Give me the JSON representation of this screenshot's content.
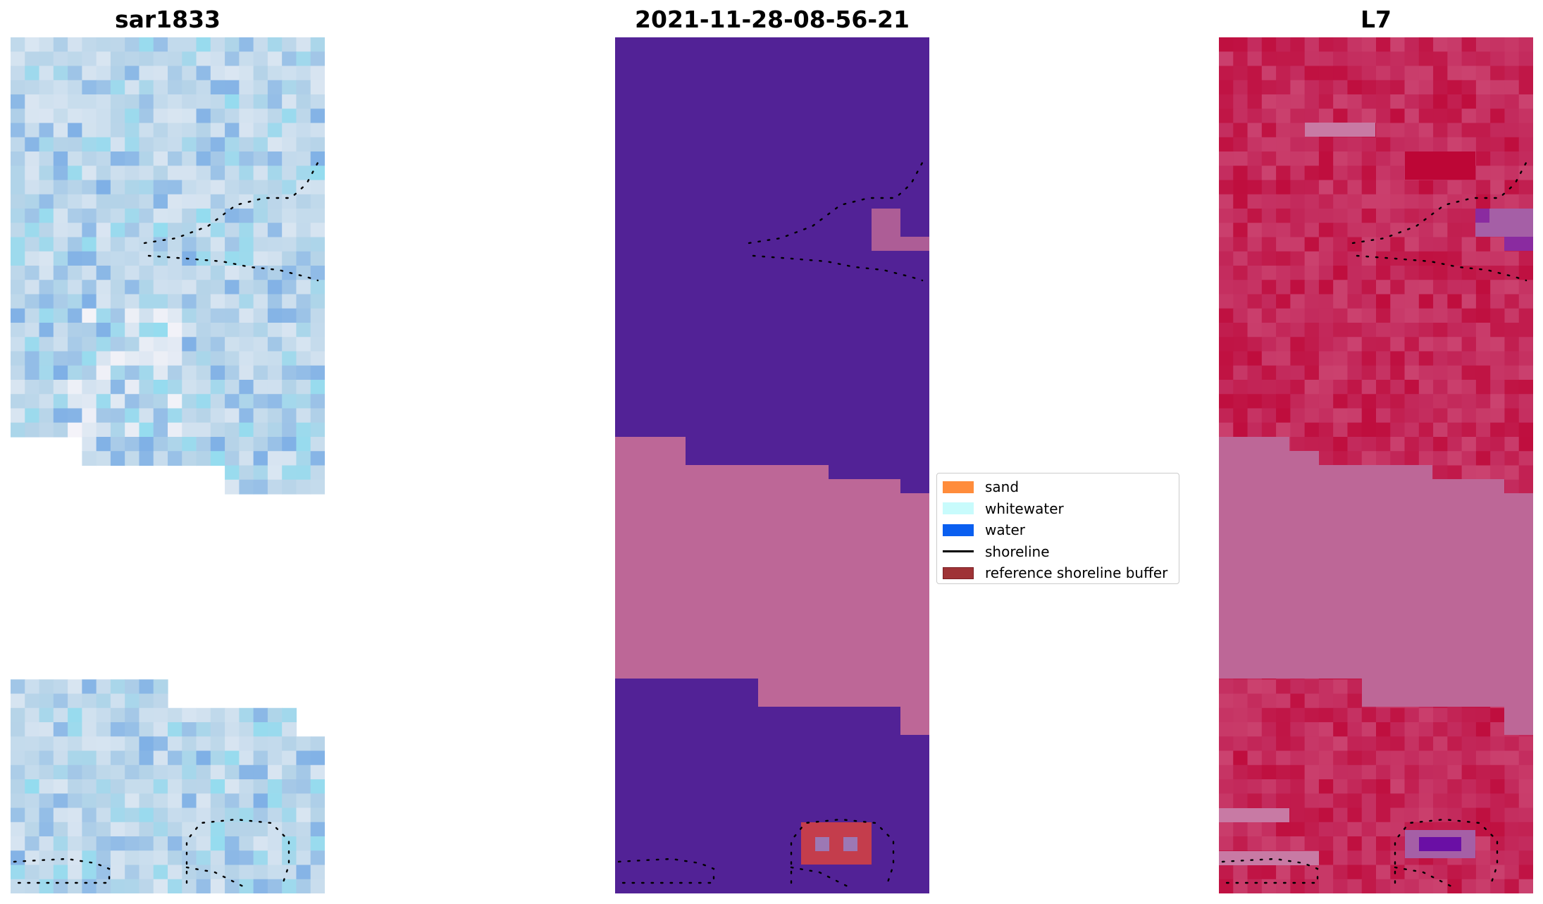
{
  "chart_data": [
    {
      "type": "heatmap",
      "title": "sar1833",
      "description_note": "",
      "ncols": 22,
      "nrows": 60,
      "nodata_mask_rows": "",
      "colors": {
        "low": "#7fb0e6",
        "mid": "#b5d3e8",
        "high": "#f2f2f8",
        "accent": "#94dcef"
      }
    },
    {
      "type": "heatmap",
      "title": "2021-11-28-08-56-21",
      "colors": {
        "water_class": "#522296",
        "sand_overlay": "#bd6797",
        "buffer": "#c43d4c",
        "buffer_inner": "#9c78b4"
      }
    },
    {
      "type": "heatmap",
      "title": "L7",
      "colors": {
        "base": "#c32a5c",
        "dark": "#bf0d3d",
        "band": "#bd6797",
        "purple": "#6a0fa5"
      }
    }
  ],
  "legend": {
    "placement": "center",
    "items": [
      {
        "label": "sand",
        "color": "#ff8c3b",
        "kind": "patch"
      },
      {
        "label": "whitewater",
        "color": "#c8fbfc",
        "kind": "patch"
      },
      {
        "label": "water",
        "color": "#0a5ff0",
        "kind": "patch"
      },
      {
        "label": "shoreline",
        "color": "#000000",
        "kind": "line"
      },
      {
        "label": "reference shoreline buffer",
        "color": "#9f3336",
        "kind": "patch"
      }
    ]
  }
}
